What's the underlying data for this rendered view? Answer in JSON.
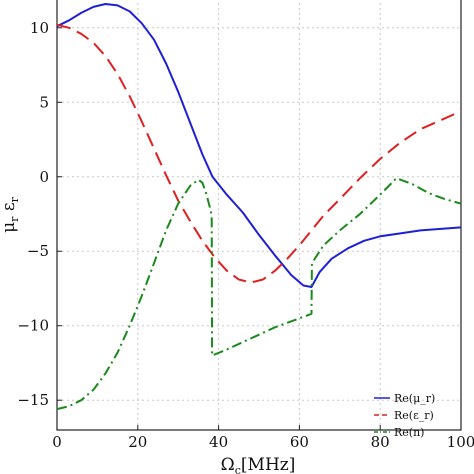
{
  "chart_data": {
    "type": "line",
    "xlabel": "Ω_c [MHz]",
    "ylabel": "μ_r  ε_r",
    "xlim": [
      0,
      100
    ],
    "ylim": [
      -17,
      12
    ],
    "xticks": [
      0,
      20,
      40,
      60,
      80,
      100
    ],
    "yticks": [
      10,
      5,
      0,
      -5,
      -10,
      -15
    ],
    "xtick_labels": [
      "0",
      "20",
      "40",
      "60",
      "80",
      "100"
    ],
    "ytick_labels": [
      "10",
      "5",
      "0",
      "−5",
      "−10",
      "−15"
    ],
    "grid": true,
    "legend_position": "bottom-right",
    "series": [
      {
        "name": "Re(μ_r)",
        "color": "#1f1fd6",
        "dash": "solid",
        "x": [
          0,
          3,
          6,
          9,
          12,
          15,
          18,
          21,
          24,
          27,
          30,
          33,
          36,
          38.5,
          42,
          46,
          50,
          54,
          58,
          61,
          63,
          65,
          68,
          72,
          76,
          80,
          85,
          90,
          95,
          100
        ],
        "y": [
          10.1,
          10.5,
          11.0,
          11.4,
          11.6,
          11.5,
          11.1,
          10.3,
          9.2,
          7.6,
          5.7,
          3.6,
          1.5,
          0.0,
          -1.2,
          -2.4,
          -3.9,
          -5.3,
          -6.6,
          -7.3,
          -7.4,
          -6.4,
          -5.5,
          -4.8,
          -4.3,
          -4.0,
          -3.8,
          -3.6,
          -3.5,
          -3.4
        ]
      },
      {
        "name": "Re(ε_r)",
        "color": "#e02020",
        "dash": "long-dash",
        "x": [
          0,
          3,
          6,
          9,
          12,
          15,
          18,
          21,
          24,
          27,
          30,
          33,
          36,
          39,
          42,
          45,
          48,
          51,
          54,
          57,
          60,
          63,
          66,
          70,
          75,
          80,
          85,
          90,
          95,
          100
        ],
        "y": [
          10.2,
          10.0,
          9.6,
          9.0,
          8.1,
          6.9,
          5.4,
          3.7,
          1.9,
          0.1,
          -1.6,
          -3.0,
          -4.3,
          -5.4,
          -6.3,
          -6.9,
          -7.1,
          -6.9,
          -6.3,
          -5.5,
          -4.6,
          -3.6,
          -2.6,
          -1.5,
          -0.1,
          1.2,
          2.3,
          3.2,
          3.8,
          4.4
        ]
      },
      {
        "name": "Re(n)",
        "color": "#1a8a1a",
        "dash": "dash-dot",
        "x": [
          0,
          3,
          6,
          9,
          12,
          15,
          18,
          21,
          24,
          27,
          30,
          33,
          35,
          36,
          37,
          37.8,
          38.3,
          38.4,
          42,
          46,
          50,
          54,
          58,
          62,
          63,
          63.1,
          66,
          70,
          75,
          80,
          84,
          88,
          92,
          96,
          100
        ],
        "y": [
          -15.6,
          -15.4,
          -15.0,
          -14.3,
          -13.2,
          -11.8,
          -10.0,
          -8.0,
          -5.8,
          -3.6,
          -1.8,
          -0.6,
          -0.2,
          -0.4,
          -1.2,
          -2.0,
          -2.6,
          -12.0,
          -11.6,
          -11.1,
          -10.6,
          -10.1,
          -9.7,
          -9.3,
          -9.2,
          -5.8,
          -4.6,
          -3.6,
          -2.5,
          -1.2,
          -0.1,
          -0.5,
          -1.1,
          -1.5,
          -1.8
        ]
      }
    ]
  }
}
